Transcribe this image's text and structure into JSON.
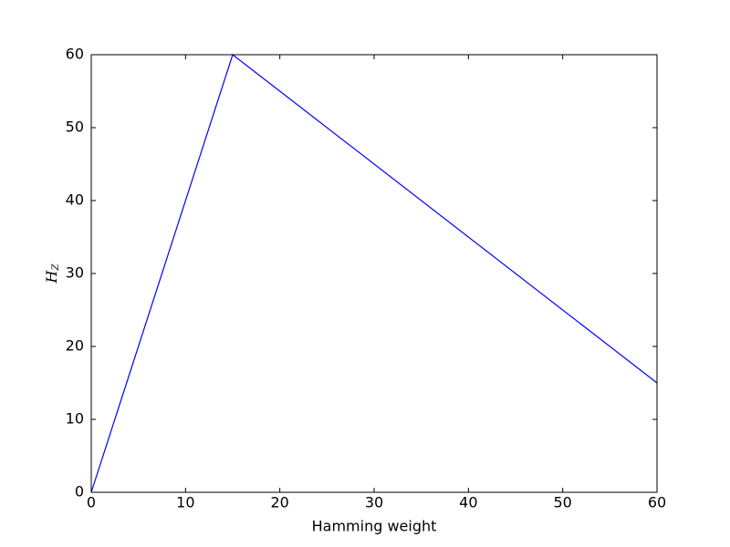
{
  "chart_data": {
    "type": "line",
    "xlabel": "Hamming weight",
    "ylabel": "H",
    "ylabel_subscript": "Z",
    "x": [
      0,
      15,
      60
    ],
    "series": [
      {
        "color": "#0000ff",
        "values": [
          0,
          60,
          15
        ]
      }
    ],
    "xlim": [
      0,
      60
    ],
    "ylim": [
      0,
      60
    ],
    "xticks": [
      0,
      10,
      20,
      30,
      40,
      50,
      60
    ],
    "yticks": [
      0,
      10,
      20,
      30,
      40,
      50,
      60
    ],
    "grid": false
  }
}
